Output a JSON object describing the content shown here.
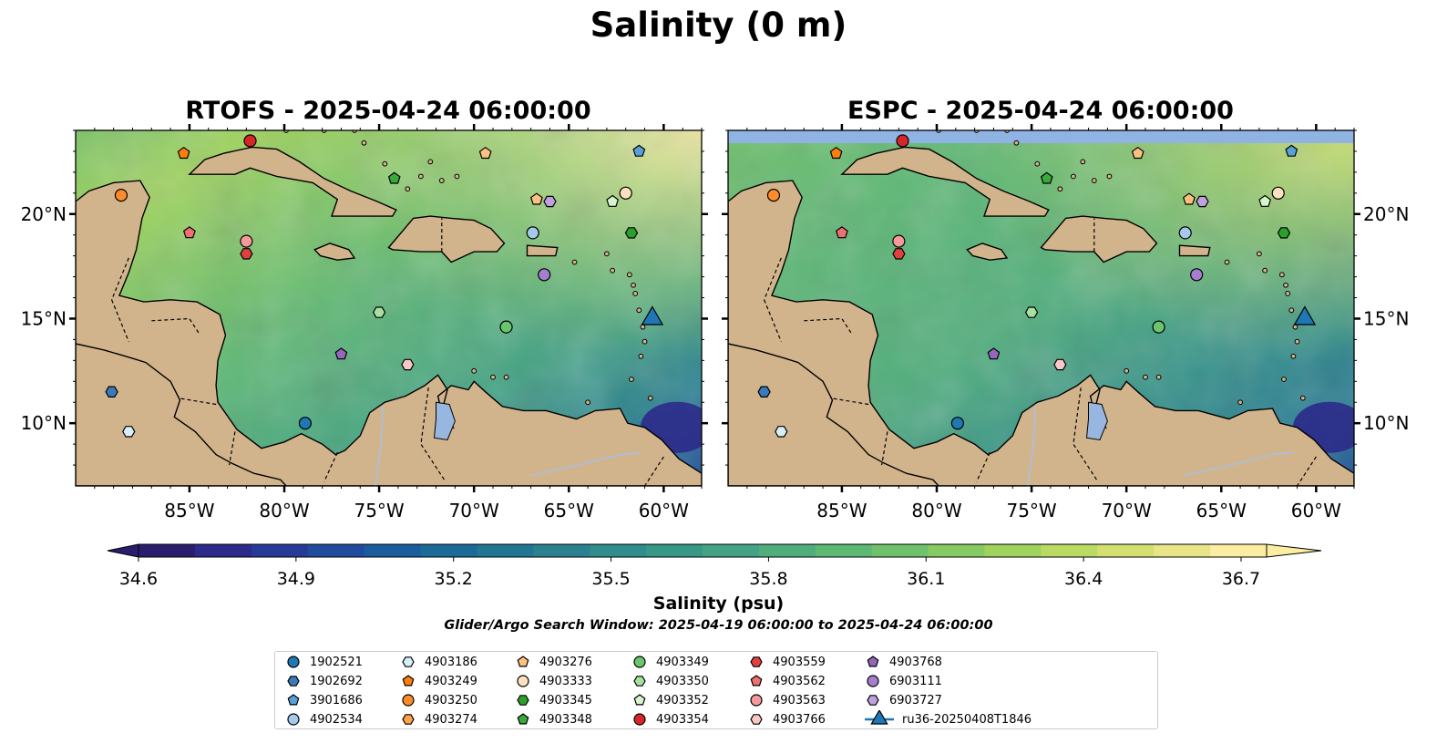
{
  "suptitle": "Salinity (0 m)",
  "panels": [
    {
      "title": "RTOFS - 2025-04-24 06:00:00",
      "model": "RTOFS"
    },
    {
      "title": "ESPC - 2025-04-24 06:00:00",
      "model": "ESPC"
    }
  ],
  "axes": {
    "lon_ticks": [
      "85°W",
      "80°W",
      "75°W",
      "70°W",
      "65°W",
      "60°W"
    ],
    "lat_ticks": [
      "20°N",
      "15°N",
      "10°N"
    ],
    "lon_range": [
      -91,
      -58
    ],
    "lat_range": [
      7,
      24
    ]
  },
  "colorbar": {
    "label": "Salinity (psu)",
    "ticks": [
      "34.6",
      "34.9",
      "35.2",
      "35.5",
      "35.8",
      "36.1",
      "36.4",
      "36.7"
    ],
    "range": [
      34.6,
      36.7
    ],
    "colors": [
      "#2b1d6e",
      "#2c2a8a",
      "#283a98",
      "#1f4c9c",
      "#1a5c9c",
      "#1b6a98",
      "#227693",
      "#2a8290",
      "#318d8c",
      "#389888",
      "#43a384",
      "#4fae7c",
      "#5db873",
      "#6fc26b",
      "#86cb62",
      "#9fd35d",
      "#bada62",
      "#d3e070",
      "#e8e589",
      "#fbeea3"
    ]
  },
  "search_window": "Glider/Argo Search Window: 2025-04-19 06:00:00 to 2025-04-24 06:00:00",
  "platforms": [
    {
      "id": "1902521",
      "marker": "circle",
      "color": "#1f77b4"
    },
    {
      "id": "1902692",
      "marker": "hexagon",
      "color": "#3a7ab8"
    },
    {
      "id": "3901686",
      "marker": "pentagon",
      "color": "#5aa0d8"
    },
    {
      "id": "4902534",
      "marker": "circle",
      "color": "#a5c8ec"
    },
    {
      "id": "4903186",
      "marker": "hexagon",
      "color": "#d6f0fb"
    },
    {
      "id": "4903249",
      "marker": "pentagon",
      "color": "#ff7f0e"
    },
    {
      "id": "4903250",
      "marker": "circle",
      "color": "#ff8c2a"
    },
    {
      "id": "4903274",
      "marker": "hexagon",
      "color": "#ffa04a"
    },
    {
      "id": "4903276",
      "marker": "pentagon",
      "color": "#ffc080"
    },
    {
      "id": "4903333",
      "marker": "circle",
      "color": "#ffe0bf"
    },
    {
      "id": "4903345",
      "marker": "hexagon",
      "color": "#2ca02c"
    },
    {
      "id": "4903348",
      "marker": "pentagon",
      "color": "#3aa83a"
    },
    {
      "id": "4903349",
      "marker": "circle",
      "color": "#6cc46c"
    },
    {
      "id": "4903350",
      "marker": "hexagon",
      "color": "#a8e0a0"
    },
    {
      "id": "4903352",
      "marker": "pentagon",
      "color": "#d6f5cf"
    },
    {
      "id": "4903354",
      "marker": "circle",
      "color": "#d62728"
    },
    {
      "id": "4903559",
      "marker": "hexagon",
      "color": "#e0403f"
    },
    {
      "id": "4903562",
      "marker": "pentagon",
      "color": "#f07070"
    },
    {
      "id": "4903563",
      "marker": "circle",
      "color": "#f59a9a"
    },
    {
      "id": "4903766",
      "marker": "hexagon",
      "color": "#fbc8c8"
    },
    {
      "id": "4903768",
      "marker": "pentagon",
      "color": "#9467bd"
    },
    {
      "id": "6903111",
      "marker": "circle",
      "color": "#a57ed0"
    },
    {
      "id": "6903727",
      "marker": "hexagon",
      "color": "#c0a0e0"
    },
    {
      "id": "ru36-20250408T1846",
      "marker": "triangle",
      "color": "#1f77b4"
    }
  ],
  "observations": [
    {
      "id": "4903354",
      "lon": -81.8,
      "lat": 23.5
    },
    {
      "id": "4903249",
      "lon": -85.3,
      "lat": 22.9
    },
    {
      "id": "4903250",
      "lon": -88.6,
      "lat": 20.9
    },
    {
      "id": "4903348",
      "lon": -74.2,
      "lat": 21.7
    },
    {
      "id": "4903276",
      "lon": -69.4,
      "lat": 22.9
    },
    {
      "id": "3901686",
      "lon": -61.3,
      "lat": 23.0
    },
    {
      "id": "4903276",
      "lon": -66.7,
      "lat": 20.7
    },
    {
      "id": "6903727",
      "lon": -66.0,
      "lat": 20.6
    },
    {
      "id": "4903352",
      "lon": -62.7,
      "lat": 20.6
    },
    {
      "id": "4903333",
      "lon": -62.0,
      "lat": 21.0
    },
    {
      "id": "4903562",
      "lon": -85.0,
      "lat": 19.1
    },
    {
      "id": "4903563",
      "lon": -82.0,
      "lat": 18.7
    },
    {
      "id": "4903559",
      "lon": -82.0,
      "lat": 18.1
    },
    {
      "id": "4902534",
      "lon": -66.9,
      "lat": 19.1
    },
    {
      "id": "4903345",
      "lon": -61.7,
      "lat": 19.1
    },
    {
      "id": "6903111",
      "lon": -66.3,
      "lat": 17.1
    },
    {
      "id": "4903350",
      "lon": -75.0,
      "lat": 15.3
    },
    {
      "id": "4903349",
      "lon": -68.3,
      "lat": 14.6
    },
    {
      "id": "4903768",
      "lon": -77.0,
      "lat": 13.3
    },
    {
      "id": "4903766",
      "lon": -73.5,
      "lat": 12.8
    },
    {
      "id": "1902692",
      "lon": -89.1,
      "lat": 11.5
    },
    {
      "id": "4903186",
      "lon": -88.2,
      "lat": 9.6
    },
    {
      "id": "1902521",
      "lon": -78.9,
      "lat": 10.0
    },
    {
      "id": "ru36-20250408T1846",
      "lon": -60.6,
      "lat": 15.0
    }
  ]
}
